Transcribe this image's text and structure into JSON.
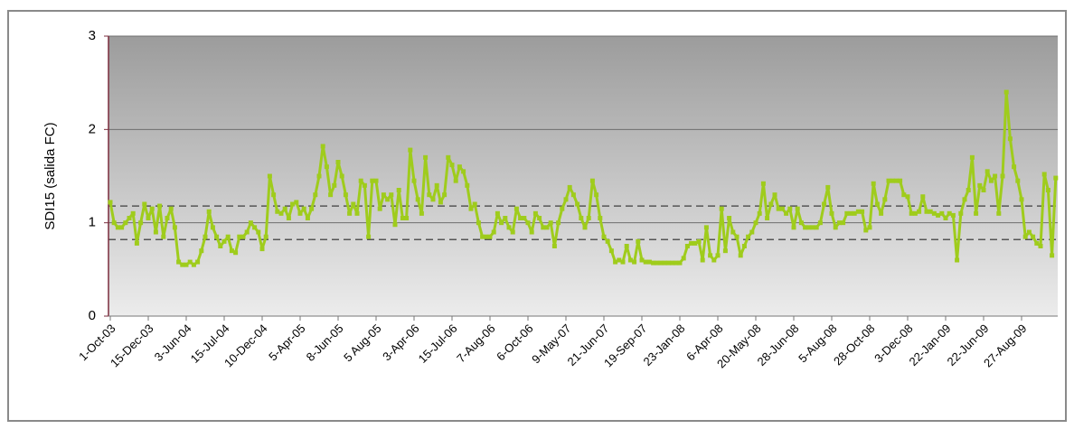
{
  "chart_data": {
    "type": "line",
    "y_label": "SDI15 (salida FC)",
    "categories": [
      "1-Oct-03",
      null,
      null,
      null,
      null,
      null,
      null,
      null,
      null,
      null,
      "15-Dec-03",
      null,
      null,
      null,
      null,
      null,
      null,
      null,
      null,
      null,
      "3-Jun-04",
      null,
      null,
      null,
      null,
      null,
      null,
      null,
      null,
      null,
      "15-Jul-04",
      null,
      null,
      null,
      null,
      null,
      null,
      null,
      null,
      null,
      "10-Dec-04",
      null,
      null,
      null,
      null,
      null,
      null,
      null,
      null,
      null,
      "5-Apr-05",
      null,
      null,
      null,
      null,
      null,
      null,
      null,
      null,
      null,
      "8-Jun-05",
      null,
      null,
      null,
      null,
      null,
      null,
      null,
      null,
      null,
      "5 Aug-05",
      null,
      null,
      null,
      null,
      null,
      null,
      null,
      null,
      null,
      "3-Apr-06",
      null,
      null,
      null,
      null,
      null,
      null,
      null,
      null,
      null,
      "15-Jul-06",
      null,
      null,
      null,
      null,
      null,
      null,
      null,
      null,
      null,
      "7-Aug-06",
      null,
      null,
      null,
      null,
      null,
      null,
      null,
      null,
      null,
      "6-Oct-06",
      null,
      null,
      null,
      null,
      null,
      null,
      null,
      null,
      null,
      "9-May-07",
      null,
      null,
      null,
      null,
      null,
      null,
      null,
      null,
      null,
      "21-Jun-07",
      null,
      null,
      null,
      null,
      null,
      null,
      null,
      null,
      null,
      "19-Sep-07",
      null,
      null,
      null,
      null,
      null,
      null,
      null,
      null,
      null,
      "23-Jan-08",
      null,
      null,
      null,
      null,
      null,
      null,
      null,
      null,
      null,
      "6-Apr-08",
      null,
      null,
      null,
      null,
      null,
      null,
      null,
      null,
      null,
      "20-May-08",
      null,
      null,
      null,
      null,
      null,
      null,
      null,
      null,
      null,
      "28-Jun-08",
      null,
      null,
      null,
      null,
      null,
      null,
      null,
      null,
      null,
      "5-Aug-08",
      null,
      null,
      null,
      null,
      null,
      null,
      null,
      null,
      null,
      "28-Oct-08",
      null,
      null,
      null,
      null,
      null,
      null,
      null,
      null,
      null,
      "3-Dec-08",
      null,
      null,
      null,
      null,
      null,
      null,
      null,
      null,
      null,
      "22-Jan-09",
      null,
      null,
      null,
      null,
      null,
      null,
      null,
      null,
      null,
      "22-Jun-09",
      null,
      null,
      null,
      null,
      null,
      null,
      null,
      null,
      null,
      "27-Aug-09",
      null,
      null,
      null,
      null,
      null,
      null,
      null,
      null,
      null
    ],
    "series": [
      {
        "color": "#9fcc1c",
        "values": [
          1.22,
          1.0,
          0.95,
          0.95,
          1.0,
          1.05,
          1.1,
          0.78,
          1.0,
          1.2,
          1.05,
          1.15,
          0.9,
          1.18,
          0.85,
          1.05,
          1.15,
          0.95,
          0.58,
          0.55,
          0.55,
          0.58,
          0.55,
          0.58,
          0.7,
          0.85,
          1.12,
          0.95,
          0.85,
          0.75,
          0.8,
          0.85,
          0.7,
          0.68,
          0.85,
          0.85,
          0.9,
          1.0,
          0.95,
          0.9,
          0.72,
          0.85,
          1.5,
          1.3,
          1.12,
          1.1,
          1.15,
          1.05,
          1.2,
          1.22,
          1.1,
          1.15,
          1.05,
          1.15,
          1.3,
          1.5,
          1.82,
          1.6,
          1.3,
          1.4,
          1.65,
          1.5,
          1.3,
          1.1,
          1.2,
          1.1,
          1.45,
          1.4,
          0.85,
          1.45,
          1.45,
          1.15,
          1.3,
          1.25,
          1.3,
          0.98,
          1.35,
          1.05,
          1.05,
          1.78,
          1.45,
          1.25,
          1.1,
          1.7,
          1.3,
          1.25,
          1.4,
          1.22,
          1.3,
          1.7,
          1.62,
          1.45,
          1.6,
          1.55,
          1.4,
          1.15,
          1.2,
          1.0,
          0.85,
          0.85,
          0.85,
          0.9,
          1.1,
          1.0,
          1.05,
          0.95,
          0.9,
          1.15,
          1.05,
          1.05,
          1.0,
          0.9,
          1.1,
          1.05,
          0.95,
          0.95,
          1.0,
          0.75,
          1.0,
          1.15,
          1.25,
          1.38,
          1.3,
          1.2,
          1.05,
          0.95,
          1.05,
          1.45,
          1.3,
          1.05,
          0.85,
          0.8,
          0.7,
          0.58,
          0.6,
          0.58,
          0.75,
          0.6,
          0.58,
          0.8,
          0.6,
          0.58,
          0.58,
          0.57,
          0.57,
          0.57,
          0.57,
          0.57,
          0.57,
          0.57,
          0.57,
          0.62,
          0.75,
          0.78,
          0.78,
          0.8,
          0.6,
          0.95,
          0.65,
          0.6,
          0.65,
          1.15,
          0.7,
          1.05,
          0.9,
          0.85,
          0.65,
          0.75,
          0.85,
          0.9,
          1.0,
          1.1,
          1.42,
          1.05,
          1.2,
          1.3,
          1.15,
          1.15,
          1.1,
          1.15,
          0.95,
          1.15,
          1.0,
          0.95,
          0.95,
          0.95,
          0.95,
          1.0,
          1.2,
          1.38,
          1.1,
          0.95,
          1.0,
          1.0,
          1.1,
          1.1,
          1.1,
          1.12,
          1.12,
          0.92,
          0.95,
          1.42,
          1.2,
          1.1,
          1.25,
          1.45,
          1.45,
          1.45,
          1.45,
          1.3,
          1.28,
          1.1,
          1.1,
          1.12,
          1.28,
          1.12,
          1.12,
          1.1,
          1.08,
          1.1,
          1.05,
          1.1,
          1.08,
          0.6,
          1.1,
          1.25,
          1.35,
          1.7,
          1.1,
          1.4,
          1.35,
          1.55,
          1.45,
          1.5,
          1.1,
          1.5,
          2.4,
          1.9,
          1.6,
          1.45,
          1.25,
          0.85,
          0.9,
          0.85,
          0.78,
          0.75,
          1.52,
          1.35,
          0.65,
          1.48
        ]
      }
    ],
    "ylim": [
      0,
      3
    ],
    "yticks": [
      0,
      1,
      2,
      3
    ],
    "grid": true,
    "reference_lines": [
      1.18,
      0.82
    ]
  }
}
